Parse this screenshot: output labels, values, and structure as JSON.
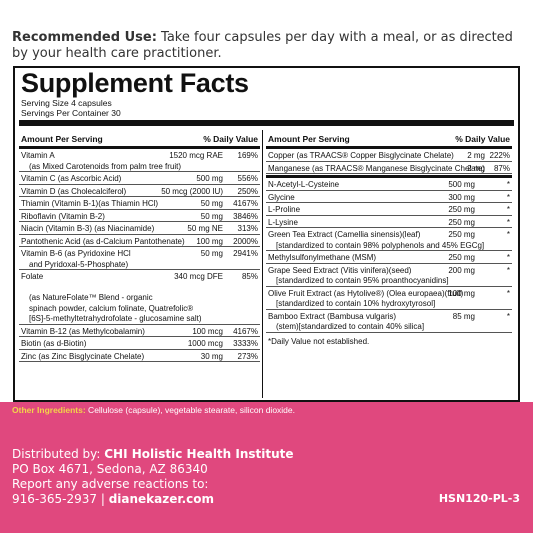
{
  "recommended": {
    "label": "Recommended Use:",
    "text": " Take four capsules per day with a meal, or as directed by your health care practitioner."
  },
  "facts": {
    "title": "Supplement Facts",
    "serving_size": "Serving Size 4 capsules",
    "servings_per_container": "Servings Per Container 30",
    "header_amount": "Amount Per Serving",
    "header_dv": "% Daily Value",
    "left_rows": [
      {
        "name": "Vitamin A",
        "amount": "1520 mcg RAE",
        "dv": "169%",
        "sub": [
          "(as Mixed Carotenoids from palm tree fruit)"
        ]
      },
      {
        "name": "Vitamin C (as Ascorbic Acid)",
        "amount": "500 mg",
        "dv": "556%",
        "sub": []
      },
      {
        "name": "Vitamin D (as Cholecalciferol)",
        "amount": "50 mcg (2000 IU)",
        "dv": "250%",
        "sub": []
      },
      {
        "name": "Thiamin (Vitamin B-1)(as Thiamin HCl)",
        "amount": "50 mg",
        "dv": "4167%",
        "sub": []
      },
      {
        "name": "Riboflavin (Vitamin B-2)",
        "amount": "50 mg",
        "dv": "3846%",
        "sub": []
      },
      {
        "name": "Niacin (Vitamin B-3) (as Niacinamide)",
        "amount": "50 mg NE",
        "dv": "313%",
        "sub": []
      },
      {
        "name": "Pantothenic Acid (as d-Calcium Pantothenate)",
        "amount": "100 mg",
        "dv": "2000%",
        "sub": []
      },
      {
        "name": "Vitamin B-6 (as Pyridoxine HCl",
        "amount": "50 mg",
        "dv": "2941%",
        "sub": [
          "and Pyridoxal-5-Phosphate)"
        ]
      },
      {
        "name": "Folate",
        "amount": "340 mcg DFE",
        "dv": "85%",
        "sub": [
          "",
          "(as NatureFolate™ Blend - organic",
          "spinach powder, calcium folinate, Quatrefolic®",
          "[6S]-5-methyltetrahydrofolate - glucosamine salt)"
        ]
      },
      {
        "name": "Vitamin B-12 (as Methylcobalamin)",
        "amount": "100 mcg",
        "dv": "4167%",
        "sub": []
      },
      {
        "name": "Biotin (as d-Biotin)",
        "amount": "1000 mcg",
        "dv": "3333%",
        "sub": []
      },
      {
        "name": "Zinc (as Zinc Bisglycinate Chelate)",
        "amount": "30 mg",
        "dv": "273%",
        "sub": []
      }
    ],
    "right_top_rows": [
      {
        "name": "Copper (as TRAACS® Copper Bisglycinate Chelate)",
        "amount": "2 mg",
        "dv": "222%"
      },
      {
        "name": "Manganese (as TRAACS® Manganese Bisglycinate Chelate)",
        "amount": "2 mg",
        "dv": "87%"
      }
    ],
    "right_rows": [
      {
        "name": "N-Acetyl-L-Cysteine",
        "amount": "500 mg",
        "dv": "*",
        "sub": []
      },
      {
        "name": "Glycine",
        "amount": "300 mg",
        "dv": "*",
        "sub": []
      },
      {
        "name": "L-Proline",
        "amount": "250 mg",
        "dv": "*",
        "sub": []
      },
      {
        "name": "L-Lysine",
        "amount": "250 mg",
        "dv": "*",
        "sub": []
      },
      {
        "name": "Green Tea Extract (Camellia sinensis)(leaf)",
        "amount": "250 mg",
        "dv": "*",
        "sub": [
          "[standardized to contain 98% polyphenols and 45% EGCg]"
        ]
      },
      {
        "name": "Methylsulfonylmethane (MSM)",
        "amount": "250 mg",
        "dv": "*",
        "sub": []
      },
      {
        "name": "Grape Seed Extract (Vitis vinifera)(seed)",
        "amount": "200 mg",
        "dv": "*",
        "sub": [
          "[standardized to contain 95% proanthocyanidins]"
        ]
      },
      {
        "name": "Olive Fruit Extract (as Hytolive®) (Olea europaea)(fruit)",
        "amount": "100 mg",
        "dv": "*",
        "sub": [
          "[standardized to contain 10% hydroxytyrosol]"
        ]
      },
      {
        "name": "Bamboo Extract (Bambusa vulgaris)",
        "amount": "85 mg",
        "dv": "*",
        "sub": [
          "(stem)[standardized to contain 40% silica]"
        ]
      }
    ],
    "footnote": "*Daily Value not established."
  },
  "other_ingredients": {
    "label": "Other Ingredients:",
    "text": " Cellulose (capsule), vegetable stearate, silicon dioxide."
  },
  "distributor": {
    "label": "Distributed by: ",
    "name": "CHI Holistic Health Institute",
    "address1": "PO Box 4671, Sedona, AZ 86340",
    "report": "Report any adverse reactions to:",
    "phone": "916-365-2937",
    "separator": " | ",
    "website": "dianekazer.com"
  },
  "product_code": "HSN120-PL-3",
  "colors": {
    "accent": "#e0487e",
    "highlight": "#f3d34a",
    "text": "#333333"
  }
}
